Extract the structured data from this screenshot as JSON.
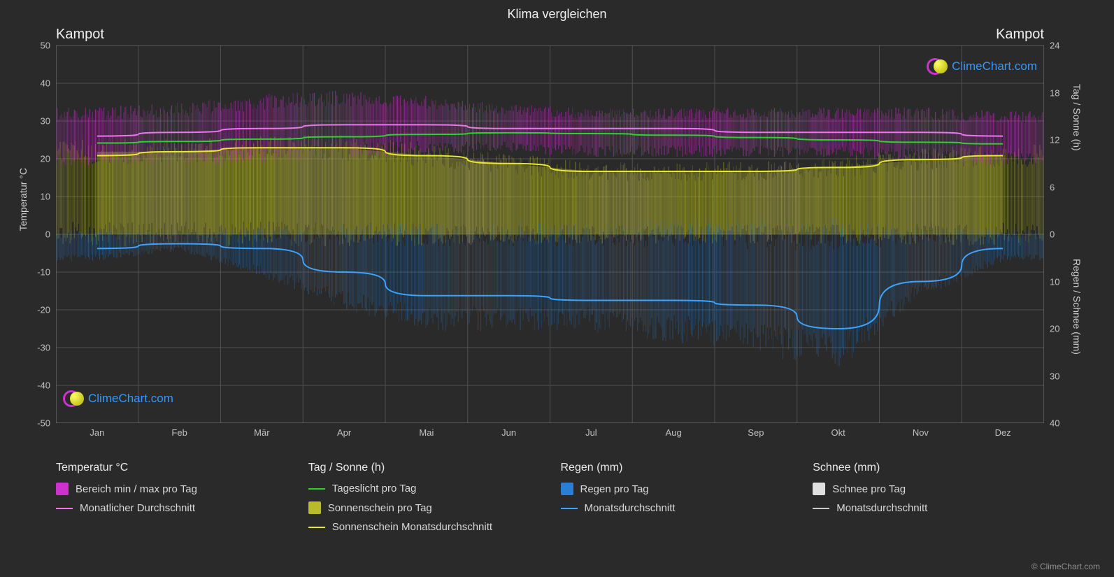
{
  "title": "Klima vergleichen",
  "location_left": "Kampot",
  "location_right": "Kampot",
  "brand_text": "ClimeChart.com",
  "brand_colors": {
    "ring1": "#cc33cc",
    "ring2": "#3399ff",
    "sun1": "#ffff66",
    "sun2": "#b0b000"
  },
  "footer": "© ClimeChart.com",
  "background_color": "#2a2a2a",
  "grid_color": "#505050",
  "text_color": "#e0e0e0",
  "chart": {
    "type": "multi-axis-climate",
    "y_left": {
      "label": "Temperatur °C",
      "min": -50,
      "max": 50,
      "step": 10,
      "ticks": [
        50,
        40,
        30,
        20,
        10,
        0,
        -10,
        -20,
        -30,
        -40,
        -50
      ]
    },
    "y_right_top": {
      "label": "Tag / Sonne (h)",
      "min": 0,
      "max": 24,
      "step": 6,
      "ticks": [
        24,
        18,
        12,
        6,
        0
      ]
    },
    "y_right_bottom": {
      "label": "Regen / Schnee (mm)",
      "min": 0,
      "max": 40,
      "step": 10,
      "ticks": [
        0,
        10,
        20,
        30,
        40
      ]
    },
    "months": [
      "Jan",
      "Feb",
      "Mär",
      "Apr",
      "Mai",
      "Jun",
      "Jul",
      "Aug",
      "Sep",
      "Okt",
      "Nov",
      "Dez"
    ],
    "series": {
      "temp_range_band": {
        "color": "#cc33cc",
        "opacity": 0.85,
        "min": [
          20,
          20,
          21,
          22,
          23,
          23,
          22,
          22,
          22,
          22,
          21,
          20
        ],
        "max": [
          32,
          33,
          35,
          36,
          35,
          33,
          32,
          32,
          32,
          32,
          32,
          31
        ]
      },
      "temp_avg_line": {
        "color": "#e879e8",
        "width": 2,
        "values": [
          26,
          27,
          28,
          29,
          29,
          28,
          28,
          28,
          27,
          27,
          27,
          26
        ]
      },
      "daylight_line": {
        "color": "#30d030",
        "width": 2,
        "values_h": [
          11.6,
          11.8,
          12.1,
          12.4,
          12.7,
          12.9,
          12.8,
          12.6,
          12.3,
          12.0,
          11.7,
          11.5
        ]
      },
      "sunshine_band": {
        "color": "#b9b92c",
        "opacity": 0.75,
        "min_h": [
          0,
          0,
          0,
          0,
          0,
          0,
          0,
          0,
          0,
          0,
          0,
          0
        ],
        "max_h": [
          10.5,
          10.5,
          11,
          11,
          10,
          9,
          8,
          8,
          8,
          8.5,
          9.5,
          10
        ]
      },
      "sunshine_avg_line": {
        "color": "#e8e830",
        "width": 2,
        "values_h": [
          10,
          10.5,
          11,
          11,
          10,
          9,
          8,
          8,
          8,
          8.5,
          9.5,
          10
        ]
      },
      "rain_band": {
        "color": "#2a7fd4",
        "opacity": 0.6,
        "min_mm": [
          0,
          0,
          0,
          0,
          0,
          0,
          0,
          0,
          0,
          0,
          0,
          0
        ],
        "max_mm": [
          5,
          3,
          8,
          14,
          18,
          18,
          18,
          20,
          22,
          25,
          12,
          5
        ]
      },
      "rain_avg_line": {
        "color": "#3ea3ff",
        "width": 2,
        "values_mm": [
          3,
          2,
          3,
          8,
          13,
          13,
          14,
          14,
          15,
          20,
          10,
          3
        ]
      },
      "snow_band": {
        "color": "#e0e0e0",
        "opacity": 0.0,
        "min_mm": [
          0,
          0,
          0,
          0,
          0,
          0,
          0,
          0,
          0,
          0,
          0,
          0
        ],
        "max_mm": [
          0,
          0,
          0,
          0,
          0,
          0,
          0,
          0,
          0,
          0,
          0,
          0
        ]
      },
      "snow_avg_line": {
        "color": "#cccccc",
        "width": 2,
        "values_mm": [
          0,
          0,
          0,
          0,
          0,
          0,
          0,
          0,
          0,
          0,
          0,
          0
        ]
      }
    }
  },
  "legend": [
    {
      "header": "Temperatur °C",
      "items": [
        {
          "type": "block",
          "color": "#cc33cc",
          "label": "Bereich min / max pro Tag"
        },
        {
          "type": "line",
          "color": "#e879e8",
          "label": "Monatlicher Durchschnitt"
        }
      ]
    },
    {
      "header": "Tag / Sonne (h)",
      "items": [
        {
          "type": "line",
          "color": "#30d030",
          "label": "Tageslicht pro Tag"
        },
        {
          "type": "block",
          "color": "#b9b92c",
          "label": "Sonnenschein pro Tag"
        },
        {
          "type": "line",
          "color": "#e8e830",
          "label": "Sonnenschein Monatsdurchschnitt"
        }
      ]
    },
    {
      "header": "Regen (mm)",
      "items": [
        {
          "type": "block",
          "color": "#2a7fd4",
          "label": "Regen pro Tag"
        },
        {
          "type": "line",
          "color": "#3ea3ff",
          "label": "Monatsdurchschnitt"
        }
      ]
    },
    {
      "header": "Schnee (mm)",
      "items": [
        {
          "type": "block",
          "color": "#e0e0e0",
          "label": "Schnee pro Tag"
        },
        {
          "type": "line",
          "color": "#cccccc",
          "label": "Monatsdurchschnitt"
        }
      ]
    }
  ]
}
